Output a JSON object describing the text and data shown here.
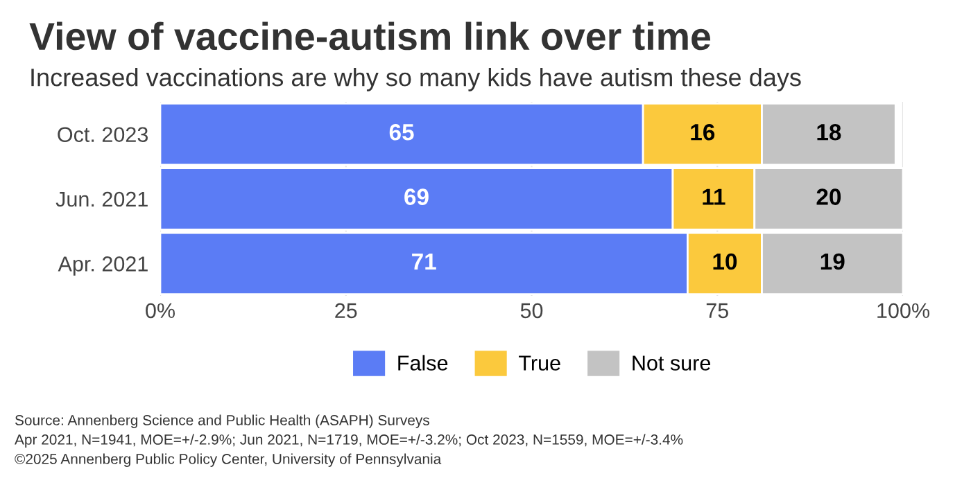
{
  "chart_data": {
    "type": "bar",
    "orientation": "horizontal",
    "stacked": true,
    "title": "View of vaccine-autism link over time",
    "subtitle": "Increased vaccinations are why so many kids have autism these days",
    "categories": [
      "Oct. 2023",
      "Jun. 2021",
      "Apr. 2021"
    ],
    "series": [
      {
        "name": "False",
        "color": "#5b7cf5",
        "values": [
          65,
          69,
          71
        ]
      },
      {
        "name": "True",
        "color": "#fbc93d",
        "values": [
          16,
          11,
          10
        ]
      },
      {
        "name": "Not sure",
        "color": "#c3c3c3",
        "values": [
          18,
          20,
          19
        ]
      }
    ],
    "xlim": [
      0,
      100
    ],
    "xticks": [
      {
        "value": 0,
        "label": "0%"
      },
      25,
      50,
      75,
      {
        "value": 100,
        "label": "100%"
      }
    ],
    "grid": "x",
    "legend": "bottom",
    "data_labels": true,
    "annotations": [
      "Source: Annenberg Science and Public Health (ASAPH) Surveys",
      "Apr 2021, N=1941, MOE=+/-2.9%; Jun 2021, N=1719, MOE=+/-3.2%; Oct 2023, N=1559, MOE=+/-3.4%",
      "©2025 Annenberg Public Policy Center, University of Pennsylvania"
    ]
  }
}
